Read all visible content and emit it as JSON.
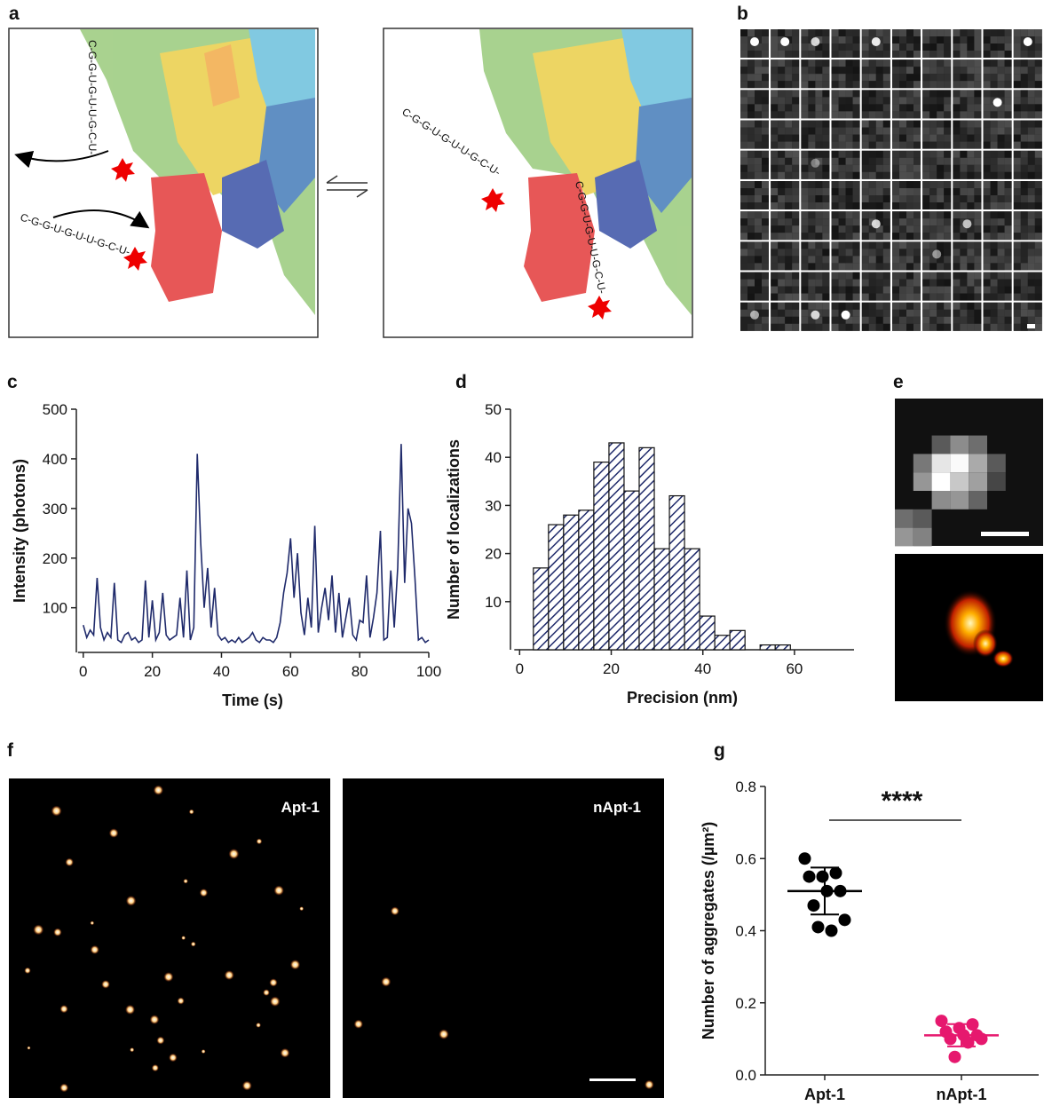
{
  "panel_labels": [
    "a",
    "b",
    "c",
    "d",
    "e",
    "f",
    "g"
  ],
  "panel_a": {
    "sequences": [
      "C-G-G-U-G-U-U-G-C-U-",
      "C-G-G-U-G-U-U-G-C-U-",
      "C-G-G-U-G-U-U-G-C-U-",
      "C-G-G-U-G-U-U-G-C-U-"
    ]
  },
  "panel_f": {
    "labels": [
      "Apt-1",
      "nApt-1"
    ]
  },
  "chart_data": [
    {
      "type": "line",
      "xlabel": "Time (s)",
      "ylabel": "Intensity (photons)",
      "color": "#1f2a6b",
      "x": [
        0,
        1,
        2,
        3,
        4,
        5,
        6,
        7,
        8,
        9,
        10,
        11,
        12,
        13,
        14,
        15,
        16,
        17,
        18,
        19,
        20,
        21,
        22,
        23,
        24,
        25,
        26,
        27,
        28,
        29,
        30,
        31,
        32,
        33,
        34,
        35,
        36,
        37,
        38,
        39,
        40,
        41,
        42,
        43,
        44,
        45,
        46,
        47,
        48,
        49,
        50,
        51,
        52,
        53,
        54,
        55,
        56,
        57,
        58,
        59,
        60,
        61,
        62,
        63,
        64,
        65,
        66,
        67,
        68,
        69,
        70,
        71,
        72,
        73,
        74,
        75,
        76,
        77,
        78,
        79,
        80,
        81,
        82,
        83,
        84,
        85,
        86,
        87,
        88,
        89,
        90,
        91,
        92,
        93,
        94,
        95,
        96,
        97,
        98,
        99,
        100
      ],
      "values": [
        65,
        40,
        55,
        45,
        160,
        60,
        35,
        50,
        40,
        150,
        35,
        30,
        45,
        50,
        35,
        40,
        30,
        35,
        155,
        40,
        115,
        35,
        50,
        130,
        45,
        35,
        40,
        45,
        120,
        40,
        175,
        35,
        60,
        410,
        230,
        100,
        180,
        60,
        140,
        45,
        35,
        40,
        30,
        35,
        30,
        40,
        30,
        35,
        40,
        50,
        35,
        30,
        40,
        35,
        35,
        30,
        40,
        70,
        130,
        170,
        240,
        120,
        210,
        90,
        45,
        120,
        60,
        265,
        50,
        100,
        140,
        75,
        165,
        50,
        130,
        40,
        80,
        120,
        45,
        35,
        75,
        70,
        165,
        40,
        80,
        130,
        255,
        35,
        40,
        175,
        60,
        180,
        430,
        150,
        300,
        270,
        160,
        35,
        40,
        30,
        35
      ],
      "xlim": [
        -2,
        100
      ],
      "ylim": [
        10,
        500
      ],
      "xticks": [
        0,
        20,
        40,
        60,
        80,
        100
      ],
      "yticks": [
        100,
        200,
        300,
        400,
        500
      ]
    },
    {
      "type": "histogram",
      "xlabel": "Precision (nm)",
      "ylabel": "Number of localizations",
      "color": "#1f2a6b",
      "bins": [
        3,
        6.3,
        9.6,
        12.9,
        16.2,
        19.5,
        22.8,
        26.1,
        29.4,
        32.7,
        36,
        39.3,
        42.6,
        45.9,
        49.2,
        52.5,
        55.8,
        59.1
      ],
      "counts": [
        17,
        26,
        28,
        29,
        39,
        43,
        33,
        42,
        21,
        32,
        21,
        7,
        3,
        4,
        0,
        1,
        1
      ],
      "xlim": [
        -2,
        73
      ],
      "ylim": [
        0,
        50
      ],
      "xticks": [
        0,
        20,
        40,
        60
      ],
      "yticks": [
        10,
        20,
        30,
        40,
        50
      ]
    },
    {
      "type": "dotplot",
      "ylabel": "Number of aggregates (/µm²)",
      "annotation": "****",
      "categories": [
        "Apt-1",
        "nApt-1"
      ],
      "colors": [
        "#000000",
        "#e6186e"
      ],
      "points": [
        [
          0.6,
          0.56,
          0.55,
          0.55,
          0.51,
          0.51,
          0.47,
          0.43,
          0.4,
          0.41
        ],
        [
          0.15,
          0.14,
          0.13,
          0.12,
          0.11,
          0.11,
          0.1,
          0.1,
          0.09,
          0.05
        ]
      ],
      "means": [
        0.51,
        0.11
      ],
      "sd": [
        0.065,
        0.031
      ],
      "ylim": [
        0,
        0.8
      ],
      "yticks": [
        {
          "value": 0,
          "label": "0.0"
        },
        0.2,
        0.4,
        0.6,
        0.8
      ]
    }
  ]
}
